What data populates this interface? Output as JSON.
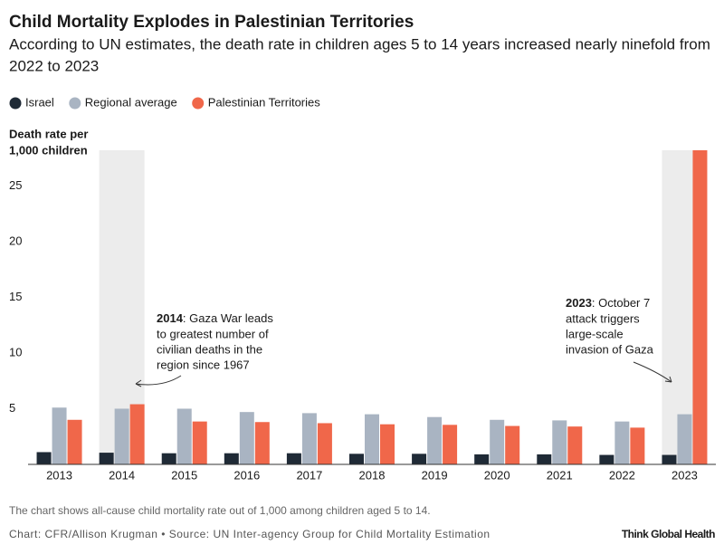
{
  "chart_data": {
    "type": "bar",
    "title": "Child Mortality Explodes in Palestinian Territories",
    "subtitle": [
      "According to UN estimates, the death rate in children ages 5 to 14 years increased nearly ninefold from",
      "2022 to 2023"
    ],
    "y_label": [
      "Death rate per",
      "1,000 children"
    ],
    "categories": [
      "2013",
      "2014",
      "2015",
      "2016",
      "2017",
      "2018",
      "2019",
      "2020",
      "2021",
      "2022",
      "2023"
    ],
    "series": [
      {
        "name": "Israel",
        "color": "#1f2a36",
        "values": [
          1.1,
          1.05,
          1.0,
          1.0,
          1.0,
          0.95,
          0.95,
          0.9,
          0.9,
          0.85,
          0.85
        ]
      },
      {
        "name": "Regional average",
        "color": "#a9b4c2",
        "values": [
          5.1,
          5.0,
          5.0,
          4.7,
          4.6,
          4.5,
          4.25,
          4.0,
          3.95,
          3.85,
          4.5
        ]
      },
      {
        "name": "Palestinian Territories",
        "color": "#f0674a",
        "values": [
          4.0,
          5.4,
          3.85,
          3.8,
          3.7,
          3.6,
          3.55,
          3.45,
          3.4,
          3.3,
          28.2
        ]
      }
    ],
    "highlight_categories": [
      1,
      10
    ],
    "highlight_color": "#ececec",
    "ylim": [
      0,
      28.2
    ],
    "yticks": [
      5,
      10,
      15,
      20,
      25
    ],
    "grid": false,
    "legend_position": "top-left",
    "annotations": [
      {
        "bold": "2014",
        "lines": [
          ": Gaza War leads",
          "to greatest number of",
          "civilian deaths in the",
          "region since 1967"
        ]
      },
      {
        "bold": "2023",
        "lines": [
          ": October 7",
          "attack triggers",
          "large-scale",
          "invasion of Gaza"
        ]
      }
    ],
    "note": "The chart shows all-cause child mortality rate out of 1,000 among children aged 5 to 14.",
    "source": "Chart: CFR/Allison Krugman • Source: UN Inter-agency Group for Child Mortality Estimation",
    "brand": "Think Global Health"
  }
}
